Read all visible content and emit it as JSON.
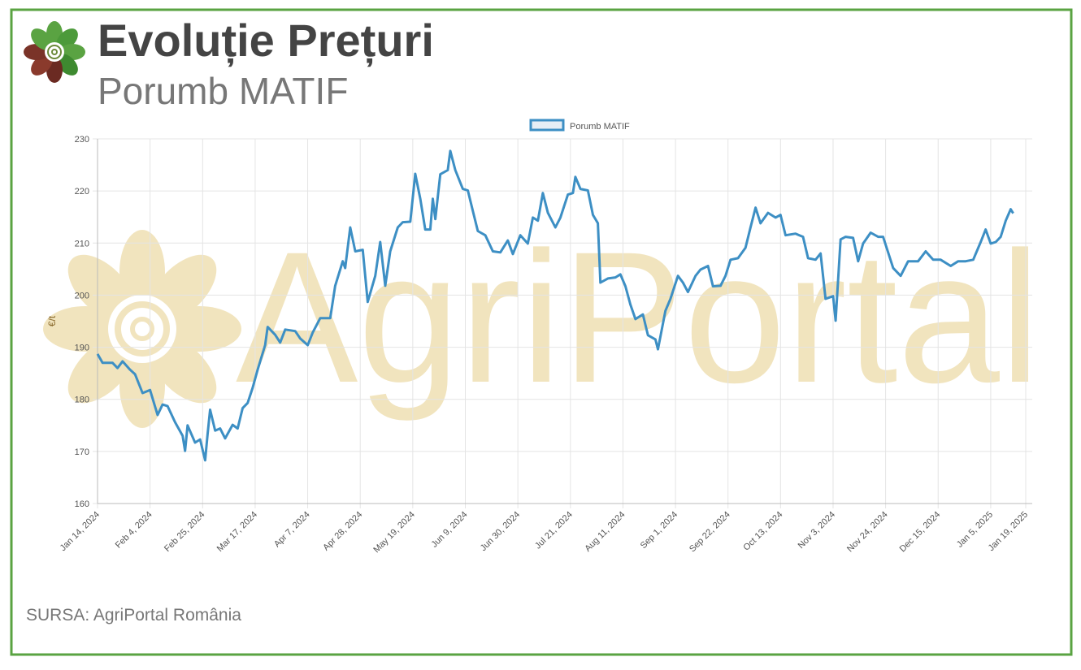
{
  "header": {
    "title": "Evoluție Prețuri",
    "subtitle": "Porumb MATIF"
  },
  "watermark": "AgriPortal",
  "source": "SURSA: AgriPortal România",
  "chart_data": {
    "type": "line",
    "ylabel": "€/t",
    "x": [
      "2024-01-14",
      "2024-01-16",
      "2024-01-20",
      "2024-01-22",
      "2024-01-24",
      "2024-01-27",
      "2024-01-29",
      "2024-02-01",
      "2024-02-04",
      "2024-02-07",
      "2024-02-09",
      "2024-02-11",
      "2024-02-14",
      "2024-02-17",
      "2024-02-18",
      "2024-02-19",
      "2024-02-22",
      "2024-02-24",
      "2024-02-26",
      "2024-02-27",
      "2024-02-28",
      "2024-03-01",
      "2024-03-03",
      "2024-03-05",
      "2024-03-08",
      "2024-03-10",
      "2024-03-12",
      "2024-03-14",
      "2024-03-16",
      "2024-03-18",
      "2024-03-21",
      "2024-03-22",
      "2024-03-25",
      "2024-03-27",
      "2024-03-29",
      "2024-04-02",
      "2024-04-04",
      "2024-04-07",
      "2024-04-09",
      "2024-04-12",
      "2024-04-16",
      "2024-04-18",
      "2024-04-21",
      "2024-04-22",
      "2024-04-24",
      "2024-04-26",
      "2024-04-29",
      "2024-05-01",
      "2024-05-04",
      "2024-05-06",
      "2024-05-08",
      "2024-05-10",
      "2024-05-13",
      "2024-05-15",
      "2024-05-18",
      "2024-05-20",
      "2024-05-22",
      "2024-05-24",
      "2024-05-26",
      "2024-05-27",
      "2024-05-28",
      "2024-05-30",
      "2024-06-02",
      "2024-06-03",
      "2024-06-05",
      "2024-06-08",
      "2024-06-10",
      "2024-06-12",
      "2024-06-14",
      "2024-06-17",
      "2024-06-20",
      "2024-06-23",
      "2024-06-26",
      "2024-06-28",
      "2024-07-01",
      "2024-07-04",
      "2024-07-06",
      "2024-07-08",
      "2024-07-10",
      "2024-07-12",
      "2024-07-15",
      "2024-07-17",
      "2024-07-20",
      "2024-07-22",
      "2024-07-23",
      "2024-07-25",
      "2024-07-28",
      "2024-07-30",
      "2024-08-01",
      "2024-08-02",
      "2024-08-05",
      "2024-08-08",
      "2024-08-10",
      "2024-08-12",
      "2024-08-14",
      "2024-08-16",
      "2024-08-19",
      "2024-08-21",
      "2024-08-24",
      "2024-08-25",
      "2024-08-28",
      "2024-08-30",
      "2024-09-02",
      "2024-09-04",
      "2024-09-06",
      "2024-09-09",
      "2024-09-11",
      "2024-09-14",
      "2024-09-16",
      "2024-09-19",
      "2024-09-21",
      "2024-09-23",
      "2024-09-26",
      "2024-09-29",
      "2024-10-01",
      "2024-10-03",
      "2024-10-05",
      "2024-10-08",
      "2024-10-11",
      "2024-10-13",
      "2024-10-15",
      "2024-10-19",
      "2024-10-22",
      "2024-10-24",
      "2024-10-27",
      "2024-10-29",
      "2024-10-31",
      "2024-11-03",
      "2024-11-04",
      "2024-11-06",
      "2024-11-08",
      "2024-11-11",
      "2024-11-13",
      "2024-11-15",
      "2024-11-18",
      "2024-11-21",
      "2024-11-23",
      "2024-11-27",
      "2024-11-30",
      "2024-12-03",
      "2024-12-07",
      "2024-12-10",
      "2024-12-13",
      "2024-12-16",
      "2024-12-20",
      "2024-12-23",
      "2024-12-26",
      "2024-12-29",
      "2025-01-01",
      "2025-01-03",
      "2025-01-05",
      "2025-01-07",
      "2025-01-09",
      "2025-01-11",
      "2025-01-13",
      "2025-01-14"
    ],
    "series": [
      {
        "name": "Porumb MATIF",
        "color": "#3d8fc4",
        "values": [
          188.7,
          187,
          187,
          186,
          187.3,
          185.7,
          184.8,
          181.2,
          181.8,
          177,
          179,
          178.7,
          175.6,
          173,
          170.1,
          175,
          171.7,
          172.3,
          168.3,
          173.3,
          178,
          174,
          174.4,
          172.5,
          175.1,
          174.4,
          178.3,
          179.3,
          182.2,
          185.7,
          190.4,
          193.9,
          192.4,
          190.9,
          193.4,
          193.1,
          191.7,
          190.4,
          192.8,
          195.6,
          195.6,
          201.8,
          206.5,
          205.2,
          213,
          208.4,
          208.7,
          198.7,
          203.7,
          210.2,
          201.8,
          208.4,
          213,
          214,
          214.1,
          223.3,
          218.5,
          212.6,
          212.6,
          218.5,
          214.6,
          223.2,
          224,
          227.7,
          224,
          220.4,
          220.1,
          216.2,
          212.3,
          211.5,
          208.4,
          208.2,
          210.5,
          207.9,
          211.5,
          209.9,
          214.9,
          214.3,
          219.6,
          215.8,
          213,
          214.9,
          219.3,
          219.6,
          222.7,
          220.4,
          220.1,
          215.4,
          213.8,
          202.4,
          203.2,
          203.4,
          204,
          201.7,
          198.2,
          195.4,
          196.3,
          192.3,
          191.5,
          189.6,
          197,
          199.3,
          203.7,
          202.4,
          200.6,
          203.7,
          204.9,
          205.6,
          201.7,
          201.8,
          203.7,
          206.8,
          207.1,
          209.1,
          213,
          216.8,
          213.8,
          215.8,
          214.9,
          215.4,
          211.5,
          211.8,
          211.2,
          207.1,
          206.8,
          208,
          199.3,
          199.8,
          195.1,
          210.7,
          211.2,
          211,
          206.5,
          209.9,
          212,
          211.2,
          211.2,
          205.2,
          203.7,
          206.5,
          206.5,
          208.4,
          206.8,
          206.8,
          205.6,
          206.5,
          206.5,
          206.8,
          210.2,
          212.6,
          209.9,
          210.2,
          211.2,
          214.3,
          216.5,
          215.7
        ]
      }
    ],
    "xlim": [
      "2024-01-14",
      "2025-01-19"
    ],
    "xticks": [
      {
        "value": "2024-01-14",
        "label": "Jan 14, 2024"
      },
      {
        "value": "2024-02-04",
        "label": "Feb 4, 2024"
      },
      {
        "value": "2024-02-25",
        "label": "Feb 25, 2024"
      },
      {
        "value": "2024-03-17",
        "label": "Mar 17, 2024"
      },
      {
        "value": "2024-04-07",
        "label": "Apr 7, 2024"
      },
      {
        "value": "2024-04-28",
        "label": "Apr 28, 2024"
      },
      {
        "value": "2024-05-19",
        "label": "May 19, 2024"
      },
      {
        "value": "2024-06-09",
        "label": "Jun 9, 2024"
      },
      {
        "value": "2024-06-30",
        "label": "Jun 30, 2024"
      },
      {
        "value": "2024-07-21",
        "label": "Jul 21, 2024"
      },
      {
        "value": "2024-08-11",
        "label": "Aug 11, 2024"
      },
      {
        "value": "2024-09-01",
        "label": "Sep 1, 2024"
      },
      {
        "value": "2024-09-22",
        "label": "Sep 22, 2024"
      },
      {
        "value": "2024-10-13",
        "label": "Oct 13, 2024"
      },
      {
        "value": "2024-11-03",
        "label": "Nov 3, 2024"
      },
      {
        "value": "2024-11-24",
        "label": "Nov 24, 2024"
      },
      {
        "value": "2024-12-15",
        "label": "Dec 15, 2024"
      },
      {
        "value": "2025-01-05",
        "label": "Jan 5, 2025"
      },
      {
        "value": "2025-01-19",
        "label": "Jan 19, 2025"
      }
    ],
    "ylim": [
      160,
      230
    ],
    "yticks": [
      160,
      170,
      180,
      190,
      200,
      210,
      220,
      230
    ],
    "grid": true,
    "legend": "top"
  }
}
